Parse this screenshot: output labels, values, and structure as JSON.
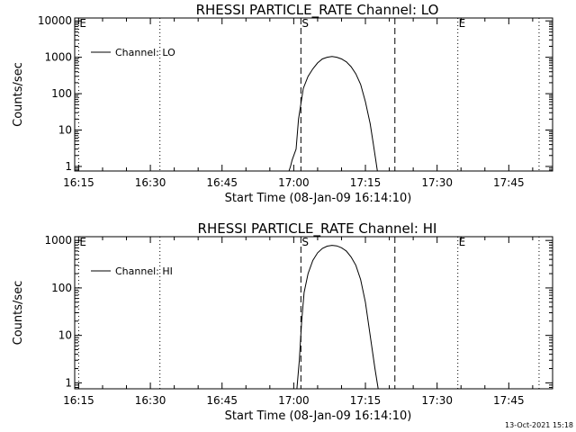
{
  "chart_data": [
    {
      "type": "line",
      "title": "RHESSI PARTICLE_RATE Channel: LO",
      "ylabel": "Counts/sec",
      "xlabel": "Start Time (08-Jan-09 16:14:10)",
      "xlim": [
        "16:14:10",
        "17:54:10"
      ],
      "ylim": [
        0.75,
        12000
      ],
      "y_scale": "log",
      "xticks": [
        "16:15",
        "16:30",
        "16:45",
        "17:00",
        "17:15",
        "17:30",
        "17:45"
      ],
      "yticks": [
        "1",
        "10",
        "100",
        "1000",
        "10000"
      ],
      "legend": {
        "entry": "Channel: LO",
        "position": "top-left"
      },
      "markers": [
        {
          "time": "16:15:00",
          "label": "E",
          "style": "dotted"
        },
        {
          "time": "16:32:00",
          "label": "",
          "style": "dotted"
        },
        {
          "time": "17:01:30",
          "label": "S",
          "style": "dashed"
        },
        {
          "time": "17:21:10",
          "label": "",
          "style": "dashed"
        },
        {
          "time": "17:34:20",
          "label": "E",
          "style": "dotted"
        },
        {
          "time": "17:51:20",
          "label": "",
          "style": "dotted"
        }
      ],
      "series": [
        {
          "name": "Channel: LO",
          "x": [
            "16:59:00",
            "16:59:20",
            "16:59:40",
            "17:00:00",
            "17:00:30",
            "17:01:00",
            "17:02:00",
            "17:03:00",
            "17:04:00",
            "17:05:00",
            "17:06:00",
            "17:07:00",
            "17:08:00",
            "17:09:00",
            "17:10:00",
            "17:11:00",
            "17:12:00",
            "17:13:00",
            "17:14:00",
            "17:15:00",
            "17:16:00",
            "17:16:40",
            "17:17:10",
            "17:17:30"
          ],
          "y": [
            0.75,
            1.0,
            1.5,
            2.0,
            3.0,
            20,
            140,
            300,
            480,
            700,
            900,
            1000,
            1050,
            1000,
            900,
            750,
            550,
            350,
            180,
            60,
            15,
            4,
            1.5,
            0.75
          ]
        }
      ]
    },
    {
      "type": "line",
      "title": "RHESSI PARTICLE_RATE Channel: HI",
      "ylabel": "Counts/sec",
      "xlabel": "Start Time (08-Jan-09 16:14:10)",
      "xlim": [
        "16:14:10",
        "17:54:10"
      ],
      "ylim": [
        0.75,
        1200
      ],
      "y_scale": "log",
      "xticks": [
        "16:15",
        "16:30",
        "16:45",
        "17:00",
        "17:15",
        "17:30",
        "17:45"
      ],
      "yticks": [
        "1",
        "10",
        "100",
        "1000"
      ],
      "legend": {
        "entry": "Channel: HI",
        "position": "top-left"
      },
      "markers": [
        {
          "time": "16:15:00",
          "label": "E",
          "style": "dotted"
        },
        {
          "time": "16:32:00",
          "label": "",
          "style": "dotted"
        },
        {
          "time": "17:01:30",
          "label": "S",
          "style": "dashed"
        },
        {
          "time": "17:21:10",
          "label": "",
          "style": "dashed"
        },
        {
          "time": "17:34:20",
          "label": "E",
          "style": "dotted"
        },
        {
          "time": "17:51:20",
          "label": "",
          "style": "dotted"
        }
      ],
      "series": [
        {
          "name": "Channel: HI",
          "x": [
            "17:00:40",
            "17:01:10",
            "17:01:40",
            "17:02:10",
            "17:03:00",
            "17:04:00",
            "17:05:00",
            "17:06:00",
            "17:07:00",
            "17:08:00",
            "17:09:00",
            "17:10:00",
            "17:11:00",
            "17:12:00",
            "17:13:00",
            "17:14:00",
            "17:15:00",
            "17:16:00",
            "17:17:00",
            "17:17:40"
          ],
          "y": [
            0.75,
            3,
            20,
            80,
            200,
            380,
            550,
            680,
            760,
            790,
            770,
            700,
            600,
            450,
            300,
            150,
            50,
            10,
            2,
            0.75
          ]
        }
      ]
    }
  ],
  "footer": {
    "timestamp": "13-Oct-2021 15:18"
  }
}
